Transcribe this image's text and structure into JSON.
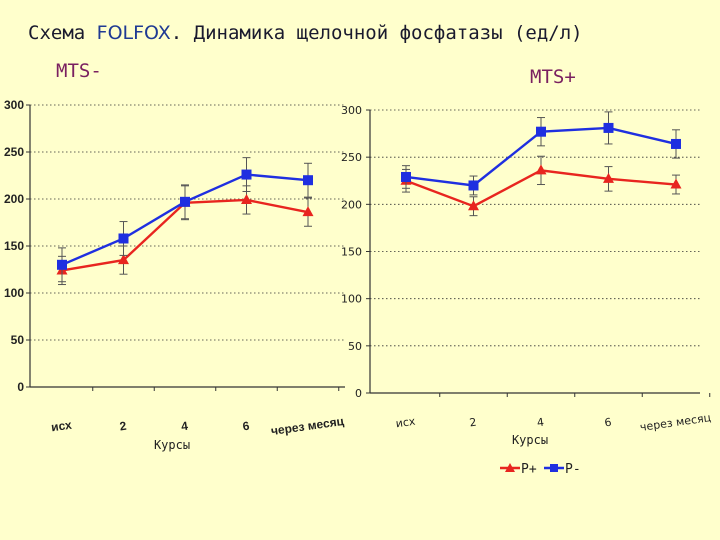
{
  "title": {
    "prefix": "Схема ",
    "accent": "FOLFOX",
    "suffix": ". Динамика щелочной фосфатазы (ед/л)"
  },
  "colors": {
    "background": "#ffffcc",
    "series_red": "#e8251f",
    "series_blue": "#1f2fe0"
  },
  "chart_data": [
    {
      "type": "line",
      "title": "MTS-",
      "xlabel": "Курсы",
      "ylabel": "",
      "categories": [
        "исх",
        "2",
        "4",
        "6",
        "через месяц"
      ],
      "ylim": [
        0,
        300
      ],
      "yticks": [
        0,
        50,
        100,
        150,
        200,
        250,
        300
      ],
      "grid": true,
      "series": [
        {
          "name": "P+",
          "color": "#e8251f",
          "marker": "triangle",
          "values": [
            124,
            135,
            196,
            199,
            186
          ],
          "errors": [
            15,
            15,
            18,
            15,
            15
          ]
        },
        {
          "name": "P-",
          "color": "#1f2fe0",
          "marker": "square",
          "values": [
            130,
            158,
            197,
            226,
            220
          ],
          "errors": [
            18,
            18,
            18,
            18,
            18
          ]
        }
      ]
    },
    {
      "type": "line",
      "title": "MTS+",
      "xlabel": "Курсы",
      "ylabel": "",
      "categories": [
        "исх",
        "2",
        "4",
        "6",
        "через месяц"
      ],
      "ylim": [
        0,
        300
      ],
      "yticks": [
        0,
        50,
        100,
        150,
        200,
        250,
        300
      ],
      "grid": true,
      "legend": "bottom",
      "series": [
        {
          "name": "P+",
          "color": "#e8251f",
          "marker": "triangle",
          "values": [
            225,
            198,
            236,
            227,
            221
          ],
          "errors": [
            12,
            10,
            15,
            13,
            10
          ]
        },
        {
          "name": "P-",
          "color": "#1f2fe0",
          "marker": "square",
          "values": [
            229,
            220,
            277,
            281,
            264
          ],
          "errors": [
            12,
            10,
            15,
            17,
            15
          ]
        }
      ]
    }
  ]
}
